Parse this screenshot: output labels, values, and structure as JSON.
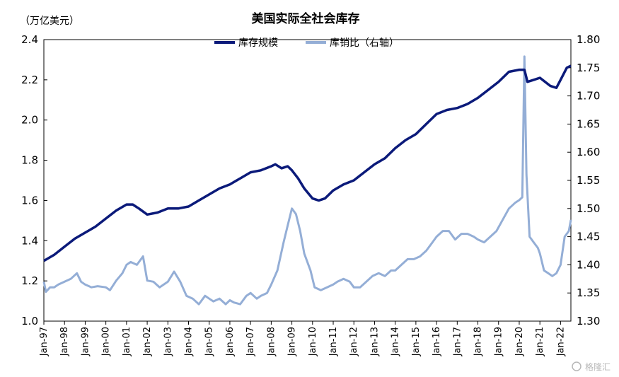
{
  "chart_data": {
    "type": "line",
    "title": "美国实际全社会库存",
    "left_unit": "（万亿美元）",
    "y_left": {
      "min": 1.0,
      "max": 2.4,
      "ticks": [
        "1.0",
        "1.2",
        "1.4",
        "1.6",
        "1.8",
        "2.0",
        "2.2",
        "2.4"
      ]
    },
    "y_right": {
      "min": 1.3,
      "max": 1.8,
      "ticks": [
        "1.30",
        "1.35",
        "1.40",
        "1.45",
        "1.50",
        "1.55",
        "1.60",
        "1.65",
        "1.70",
        "1.75",
        "1.80"
      ]
    },
    "x_ticks": [
      "Jan-97",
      "Jan-98",
      "Jan-99",
      "Jan-00",
      "Jan-01",
      "Jan-02",
      "Jan-03",
      "Jan-04",
      "Jan-05",
      "Jan-06",
      "Jan-07",
      "Jan-08",
      "Jan-09",
      "Jan-10",
      "Jan-11",
      "Jan-12",
      "Jan-13",
      "Jan-14",
      "Jan-15",
      "Jan-16",
      "Jan-17",
      "Jan-18",
      "Jan-19",
      "Jan-20",
      "Jan-21",
      "Jan-22"
    ],
    "x_range": [
      1997.0,
      2022.5
    ],
    "legend_position": "top-center",
    "series": [
      {
        "name": "库存规模",
        "axis": "left",
        "color": "#0b1a7a",
        "points": [
          [
            1997.0,
            1.3
          ],
          [
            1997.5,
            1.33
          ],
          [
            1998.0,
            1.37
          ],
          [
            1998.5,
            1.41
          ],
          [
            1999.0,
            1.44
          ],
          [
            1999.5,
            1.47
          ],
          [
            2000.0,
            1.51
          ],
          [
            2000.5,
            1.55
          ],
          [
            2001.0,
            1.58
          ],
          [
            2001.3,
            1.58
          ],
          [
            2001.6,
            1.56
          ],
          [
            2002.0,
            1.53
          ],
          [
            2002.5,
            1.54
          ],
          [
            2003.0,
            1.56
          ],
          [
            2003.5,
            1.56
          ],
          [
            2004.0,
            1.57
          ],
          [
            2004.5,
            1.6
          ],
          [
            2005.0,
            1.63
          ],
          [
            2005.5,
            1.66
          ],
          [
            2006.0,
            1.68
          ],
          [
            2006.5,
            1.71
          ],
          [
            2007.0,
            1.74
          ],
          [
            2007.5,
            1.75
          ],
          [
            2008.0,
            1.77
          ],
          [
            2008.2,
            1.78
          ],
          [
            2008.5,
            1.76
          ],
          [
            2008.8,
            1.77
          ],
          [
            2009.0,
            1.75
          ],
          [
            2009.3,
            1.71
          ],
          [
            2009.6,
            1.66
          ],
          [
            2010.0,
            1.61
          ],
          [
            2010.3,
            1.6
          ],
          [
            2010.6,
            1.61
          ],
          [
            2011.0,
            1.65
          ],
          [
            2011.5,
            1.68
          ],
          [
            2012.0,
            1.7
          ],
          [
            2012.5,
            1.74
          ],
          [
            2013.0,
            1.78
          ],
          [
            2013.5,
            1.81
          ],
          [
            2014.0,
            1.86
          ],
          [
            2014.5,
            1.9
          ],
          [
            2015.0,
            1.93
          ],
          [
            2015.5,
            1.98
          ],
          [
            2016.0,
            2.03
          ],
          [
            2016.5,
            2.05
          ],
          [
            2017.0,
            2.06
          ],
          [
            2017.5,
            2.08
          ],
          [
            2018.0,
            2.11
          ],
          [
            2018.5,
            2.15
          ],
          [
            2019.0,
            2.19
          ],
          [
            2019.5,
            2.24
          ],
          [
            2020.0,
            2.25
          ],
          [
            2020.25,
            2.25
          ],
          [
            2020.4,
            2.19
          ],
          [
            2020.7,
            2.2
          ],
          [
            2021.0,
            2.21
          ],
          [
            2021.5,
            2.17
          ],
          [
            2021.8,
            2.16
          ],
          [
            2022.0,
            2.2
          ],
          [
            2022.3,
            2.26
          ],
          [
            2022.5,
            2.27
          ]
        ]
      },
      {
        "name": "库销比（右轴）",
        "axis": "right",
        "color": "#94aed6",
        "points": [
          [
            1997.0,
            1.37
          ],
          [
            1997.1,
            1.352
          ],
          [
            1997.3,
            1.36
          ],
          [
            1997.5,
            1.36
          ],
          [
            1997.7,
            1.365
          ],
          [
            1998.0,
            1.37
          ],
          [
            1998.3,
            1.375
          ],
          [
            1998.6,
            1.385
          ],
          [
            1998.8,
            1.37
          ],
          [
            1999.0,
            1.365
          ],
          [
            1999.3,
            1.36
          ],
          [
            1999.6,
            1.362
          ],
          [
            2000.0,
            1.36
          ],
          [
            2000.2,
            1.355
          ],
          [
            2000.5,
            1.372
          ],
          [
            2000.8,
            1.385
          ],
          [
            2001.0,
            1.4
          ],
          [
            2001.2,
            1.405
          ],
          [
            2001.5,
            1.4
          ],
          [
            2001.8,
            1.415
          ],
          [
            2002.0,
            1.372
          ],
          [
            2002.3,
            1.37
          ],
          [
            2002.6,
            1.36
          ],
          [
            2003.0,
            1.37
          ],
          [
            2003.3,
            1.388
          ],
          [
            2003.6,
            1.37
          ],
          [
            2003.9,
            1.345
          ],
          [
            2004.2,
            1.34
          ],
          [
            2004.5,
            1.33
          ],
          [
            2004.8,
            1.345
          ],
          [
            2005.0,
            1.34
          ],
          [
            2005.2,
            1.335
          ],
          [
            2005.5,
            1.34
          ],
          [
            2005.8,
            1.33
          ],
          [
            2006.0,
            1.337
          ],
          [
            2006.2,
            1.333
          ],
          [
            2006.5,
            1.33
          ],
          [
            2006.8,
            1.345
          ],
          [
            2007.0,
            1.35
          ],
          [
            2007.3,
            1.34
          ],
          [
            2007.5,
            1.345
          ],
          [
            2007.8,
            1.35
          ],
          [
            2008.0,
            1.365
          ],
          [
            2008.3,
            1.39
          ],
          [
            2008.6,
            1.44
          ],
          [
            2008.8,
            1.47
          ],
          [
            2009.0,
            1.5
          ],
          [
            2009.2,
            1.49
          ],
          [
            2009.4,
            1.46
          ],
          [
            2009.6,
            1.42
          ],
          [
            2009.9,
            1.39
          ],
          [
            2010.1,
            1.36
          ],
          [
            2010.4,
            1.355
          ],
          [
            2010.7,
            1.36
          ],
          [
            2011.0,
            1.365
          ],
          [
            2011.2,
            1.37
          ],
          [
            2011.5,
            1.375
          ],
          [
            2011.8,
            1.37
          ],
          [
            2012.0,
            1.36
          ],
          [
            2012.3,
            1.36
          ],
          [
            2012.6,
            1.37
          ],
          [
            2012.9,
            1.38
          ],
          [
            2013.2,
            1.385
          ],
          [
            2013.5,
            1.38
          ],
          [
            2013.8,
            1.39
          ],
          [
            2014.0,
            1.39
          ],
          [
            2014.3,
            1.4
          ],
          [
            2014.6,
            1.41
          ],
          [
            2014.9,
            1.41
          ],
          [
            2015.2,
            1.415
          ],
          [
            2015.5,
            1.425
          ],
          [
            2015.8,
            1.44
          ],
          [
            2016.0,
            1.45
          ],
          [
            2016.3,
            1.46
          ],
          [
            2016.6,
            1.46
          ],
          [
            2016.9,
            1.445
          ],
          [
            2017.2,
            1.455
          ],
          [
            2017.5,
            1.455
          ],
          [
            2017.8,
            1.45
          ],
          [
            2018.0,
            1.445
          ],
          [
            2018.3,
            1.44
          ],
          [
            2018.6,
            1.45
          ],
          [
            2018.9,
            1.46
          ],
          [
            2019.2,
            1.48
          ],
          [
            2019.5,
            1.5
          ],
          [
            2019.8,
            1.51
          ],
          [
            2020.0,
            1.515
          ],
          [
            2020.15,
            1.52
          ],
          [
            2020.25,
            1.77
          ],
          [
            2020.35,
            1.56
          ],
          [
            2020.5,
            1.45
          ],
          [
            2020.7,
            1.44
          ],
          [
            2020.9,
            1.43
          ],
          [
            2021.0,
            1.42
          ],
          [
            2021.2,
            1.39
          ],
          [
            2021.4,
            1.385
          ],
          [
            2021.6,
            1.38
          ],
          [
            2021.8,
            1.385
          ],
          [
            2022.0,
            1.4
          ],
          [
            2022.2,
            1.45
          ],
          [
            2022.4,
            1.46
          ],
          [
            2022.5,
            1.48
          ]
        ]
      }
    ]
  },
  "watermark": "格隆汇"
}
